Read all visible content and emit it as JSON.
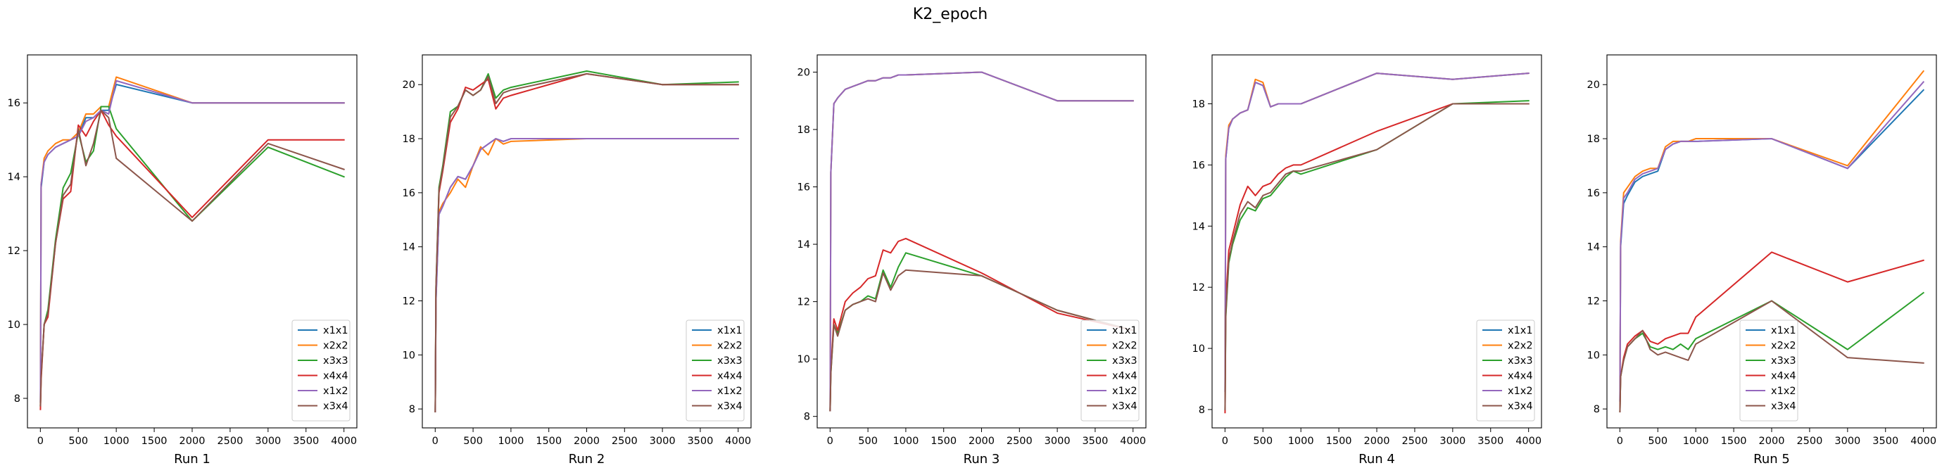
{
  "suptitle": "K2_epoch",
  "colors": {
    "x1x1": "#1f77b4",
    "x2x2": "#ff7f0e",
    "x3x3": "#2ca02c",
    "x4x4": "#d62728",
    "x1x2": "#9467bd",
    "x3x4": "#8c564b"
  },
  "chart_data": [
    {
      "type": "line",
      "xlabel": "Run 1",
      "legend": "lower-right",
      "grid": false,
      "xlim": [
        -170,
        4170
      ],
      "ylim": [
        7.2,
        17.3
      ],
      "xticks": [
        0,
        500,
        1000,
        1500,
        2000,
        2500,
        3000,
        3500,
        4000
      ],
      "yticks": [
        8,
        10,
        12,
        14,
        16
      ],
      "x": [
        1,
        10,
        50,
        100,
        200,
        300,
        400,
        500,
        600,
        700,
        800,
        900,
        1000,
        2000,
        3000,
        4000
      ],
      "series": [
        {
          "name": "x1x1",
          "values": [
            7.9,
            13.7,
            14.4,
            14.6,
            14.8,
            14.9,
            15.0,
            15.1,
            15.6,
            15.6,
            15.8,
            15.8,
            16.5,
            16.0,
            16.0,
            16.0
          ]
        },
        {
          "name": "x2x2",
          "values": [
            7.8,
            13.8,
            14.5,
            14.7,
            14.9,
            15.0,
            15.0,
            15.2,
            15.7,
            15.7,
            15.9,
            15.9,
            16.7,
            16.0,
            16.0,
            16.0
          ]
        },
        {
          "name": "x3x3",
          "values": [
            7.8,
            8.6,
            10.0,
            10.4,
            12.3,
            13.7,
            14.1,
            15.2,
            14.4,
            14.7,
            15.9,
            15.9,
            15.3,
            12.8,
            14.8,
            14.0
          ]
        },
        {
          "name": "x4x4",
          "values": [
            7.7,
            8.5,
            10.0,
            10.2,
            12.2,
            13.4,
            13.6,
            15.4,
            15.1,
            15.5,
            15.8,
            15.4,
            15.1,
            12.9,
            15.0,
            15.0
          ]
        },
        {
          "name": "x1x2",
          "values": [
            7.9,
            13.8,
            14.4,
            14.6,
            14.8,
            14.9,
            15.0,
            15.1,
            15.5,
            15.6,
            15.8,
            15.7,
            16.6,
            16.0,
            16.0,
            16.0
          ]
        },
        {
          "name": "x3x4",
          "values": [
            7.8,
            8.6,
            10.0,
            10.3,
            12.2,
            13.5,
            13.8,
            15.3,
            14.3,
            14.9,
            15.8,
            15.6,
            14.5,
            12.8,
            14.9,
            14.2
          ]
        }
      ]
    },
    {
      "type": "line",
      "xlabel": "Run 2",
      "legend": "lower-right",
      "grid": false,
      "xlim": [
        -170,
        4170
      ],
      "ylim": [
        7.3,
        21.1
      ],
      "xticks": [
        0,
        500,
        1000,
        1500,
        2000,
        2500,
        3000,
        3500,
        4000
      ],
      "yticks": [
        8,
        10,
        12,
        14,
        16,
        18,
        20
      ],
      "x": [
        1,
        10,
        50,
        100,
        200,
        300,
        400,
        500,
        600,
        700,
        800,
        900,
        1000,
        2000,
        3000,
        4000
      ],
      "series": [
        {
          "name": "x1x1",
          "values": [
            7.9,
            12.0,
            15.2,
            15.5,
            16.2,
            16.6,
            16.5,
            17.0,
            17.6,
            17.8,
            18.0,
            17.9,
            18.0,
            18.0,
            18.0,
            18.0
          ]
        },
        {
          "name": "x2x2",
          "values": [
            7.9,
            12.2,
            15.3,
            15.6,
            16.0,
            16.5,
            16.2,
            17.0,
            17.7,
            17.4,
            18.0,
            17.8,
            17.9,
            18.0,
            18.0,
            18.0
          ]
        },
        {
          "name": "x3x3",
          "values": [
            7.9,
            12.5,
            16.2,
            17.0,
            19.0,
            19.2,
            19.8,
            19.6,
            19.8,
            20.4,
            19.5,
            19.8,
            19.9,
            20.5,
            20.0,
            20.1
          ]
        },
        {
          "name": "x4x4",
          "values": [
            7.9,
            12.4,
            16.0,
            16.8,
            18.6,
            19.1,
            19.9,
            19.8,
            20.0,
            20.2,
            19.1,
            19.5,
            19.6,
            20.4,
            20.0,
            20.0
          ]
        },
        {
          "name": "x1x2",
          "values": [
            7.9,
            12.0,
            15.2,
            15.5,
            16.2,
            16.6,
            16.5,
            17.0,
            17.6,
            17.8,
            18.0,
            17.9,
            18.0,
            18.0,
            18.0,
            18.0
          ]
        },
        {
          "name": "x3x4",
          "values": [
            7.9,
            12.5,
            16.1,
            16.9,
            18.8,
            19.2,
            19.8,
            19.6,
            19.8,
            20.3,
            19.3,
            19.7,
            19.8,
            20.4,
            20.0,
            20.0
          ]
        }
      ]
    },
    {
      "type": "line",
      "xlabel": "Run 3",
      "legend": "lower-right",
      "grid": false,
      "xlim": [
        -170,
        4170
      ],
      "ylim": [
        7.6,
        20.6
      ],
      "xticks": [
        0,
        500,
        1000,
        1500,
        2000,
        2500,
        3000,
        3500,
        4000
      ],
      "yticks": [
        8,
        10,
        12,
        14,
        16,
        18,
        20
      ],
      "x": [
        1,
        10,
        50,
        100,
        200,
        300,
        400,
        500,
        600,
        700,
        800,
        900,
        1000,
        2000,
        3000,
        4000
      ],
      "series": [
        {
          "name": "x1x1",
          "values": [
            8.2,
            16.5,
            18.9,
            19.1,
            19.4,
            19.5,
            19.6,
            19.7,
            19.7,
            19.8,
            19.8,
            19.9,
            19.9,
            20.0,
            19.0,
            19.0
          ]
        },
        {
          "name": "x2x2",
          "values": [
            8.2,
            16.5,
            18.9,
            19.1,
            19.4,
            19.5,
            19.6,
            19.7,
            19.7,
            19.8,
            19.8,
            19.9,
            19.9,
            20.0,
            19.0,
            19.0
          ]
        },
        {
          "name": "x3x3",
          "values": [
            8.2,
            9.5,
            11.2,
            10.9,
            11.7,
            11.9,
            12.0,
            12.2,
            12.1,
            13.1,
            12.5,
            13.2,
            13.7,
            12.9,
            11.7,
            11.0
          ]
        },
        {
          "name": "x4x4",
          "values": [
            8.2,
            9.6,
            11.4,
            11.0,
            12.0,
            12.3,
            12.5,
            12.8,
            12.9,
            13.8,
            13.7,
            14.1,
            14.2,
            13.0,
            11.6,
            11.0
          ]
        },
        {
          "name": "x1x2",
          "values": [
            8.2,
            16.5,
            18.9,
            19.1,
            19.4,
            19.5,
            19.6,
            19.7,
            19.7,
            19.8,
            19.8,
            19.9,
            19.9,
            20.0,
            19.0,
            19.0
          ]
        },
        {
          "name": "x3x4",
          "values": [
            8.2,
            9.5,
            11.2,
            10.8,
            11.7,
            11.9,
            12.0,
            12.1,
            12.0,
            13.0,
            12.4,
            12.9,
            13.1,
            12.9,
            11.7,
            11.0
          ]
        }
      ]
    },
    {
      "type": "line",
      "xlabel": "Run 4",
      "legend": "lower-right",
      "grid": false,
      "xlim": [
        -170,
        4170
      ],
      "ylim": [
        7.4,
        19.6
      ],
      "xticks": [
        0,
        500,
        1000,
        1500,
        2000,
        2500,
        3000,
        3500,
        4000
      ],
      "yticks": [
        8,
        10,
        12,
        14,
        16,
        18
      ],
      "x": [
        1,
        10,
        50,
        100,
        200,
        300,
        400,
        500,
        600,
        700,
        800,
        900,
        1000,
        2000,
        3000,
        4000
      ],
      "series": [
        {
          "name": "x1x1",
          "values": [
            8.6,
            16.2,
            17.2,
            17.5,
            17.7,
            17.8,
            18.7,
            18.6,
            17.9,
            18.0,
            18.0,
            18.0,
            18.0,
            19.0,
            18.8,
            19.0
          ]
        },
        {
          "name": "x2x2",
          "values": [
            8.6,
            16.3,
            17.3,
            17.5,
            17.7,
            17.8,
            18.8,
            18.7,
            17.9,
            18.0,
            18.0,
            18.0,
            18.0,
            19.0,
            18.8,
            19.0
          ]
        },
        {
          "name": "x3x3",
          "values": [
            8.0,
            11.0,
            12.8,
            13.4,
            14.2,
            14.6,
            14.5,
            14.9,
            15.0,
            15.3,
            15.6,
            15.8,
            15.7,
            16.5,
            18.0,
            18.1
          ]
        },
        {
          "name": "x4x4",
          "values": [
            7.9,
            11.5,
            13.2,
            13.7,
            14.7,
            15.3,
            15.0,
            15.3,
            15.4,
            15.7,
            15.9,
            16.0,
            16.0,
            17.1,
            18.0,
            18.0
          ]
        },
        {
          "name": "x1x2",
          "values": [
            8.6,
            16.2,
            17.2,
            17.5,
            17.7,
            17.8,
            18.7,
            18.6,
            17.9,
            18.0,
            18.0,
            18.0,
            18.0,
            19.0,
            18.8,
            19.0
          ]
        },
        {
          "name": "x3x4",
          "values": [
            8.0,
            11.1,
            12.9,
            13.5,
            14.4,
            14.8,
            14.6,
            15.0,
            15.1,
            15.4,
            15.7,
            15.8,
            15.8,
            16.5,
            18.0,
            18.0
          ]
        }
      ]
    },
    {
      "type": "line",
      "xlabel": "Run 5",
      "legend": "lower-center",
      "grid": false,
      "xlim": [
        -170,
        4170
      ],
      "ylim": [
        7.3,
        21.1
      ],
      "xticks": [
        0,
        500,
        1000,
        1500,
        2000,
        2500,
        3000,
        3500,
        4000
      ],
      "yticks": [
        8,
        10,
        12,
        14,
        16,
        18,
        20
      ],
      "x": [
        1,
        10,
        50,
        100,
        200,
        300,
        400,
        500,
        600,
        700,
        800,
        900,
        1000,
        2000,
        3000,
        4000
      ],
      "series": [
        {
          "name": "x1x1",
          "values": [
            8.3,
            14.0,
            15.6,
            15.9,
            16.4,
            16.6,
            16.7,
            16.8,
            17.6,
            17.8,
            17.9,
            17.9,
            17.9,
            18.0,
            16.9,
            19.8
          ]
        },
        {
          "name": "x2x2",
          "values": [
            8.3,
            14.2,
            16.0,
            16.2,
            16.6,
            16.8,
            16.9,
            16.9,
            17.7,
            17.9,
            17.9,
            17.9,
            18.0,
            18.0,
            17.0,
            20.5
          ]
        },
        {
          "name": "x3x3",
          "values": [
            7.9,
            9.2,
            9.8,
            10.3,
            10.6,
            10.8,
            10.3,
            10.2,
            10.3,
            10.2,
            10.4,
            10.2,
            10.6,
            12.0,
            10.2,
            12.3
          ]
        },
        {
          "name": "x4x4",
          "values": [
            7.9,
            9.2,
            9.9,
            10.4,
            10.7,
            10.9,
            10.5,
            10.4,
            10.6,
            10.7,
            10.8,
            10.8,
            11.4,
            13.8,
            12.7,
            13.5
          ]
        },
        {
          "name": "x1x2",
          "values": [
            8.3,
            14.1,
            15.8,
            16.0,
            16.5,
            16.7,
            16.8,
            16.9,
            17.6,
            17.8,
            17.9,
            17.9,
            17.9,
            18.0,
            16.9,
            20.1
          ]
        },
        {
          "name": "x3x4",
          "values": [
            7.9,
            9.2,
            9.8,
            10.3,
            10.6,
            10.9,
            10.2,
            10.0,
            10.1,
            10.0,
            9.9,
            9.8,
            10.4,
            12.0,
            9.9,
            9.7
          ]
        }
      ]
    }
  ]
}
